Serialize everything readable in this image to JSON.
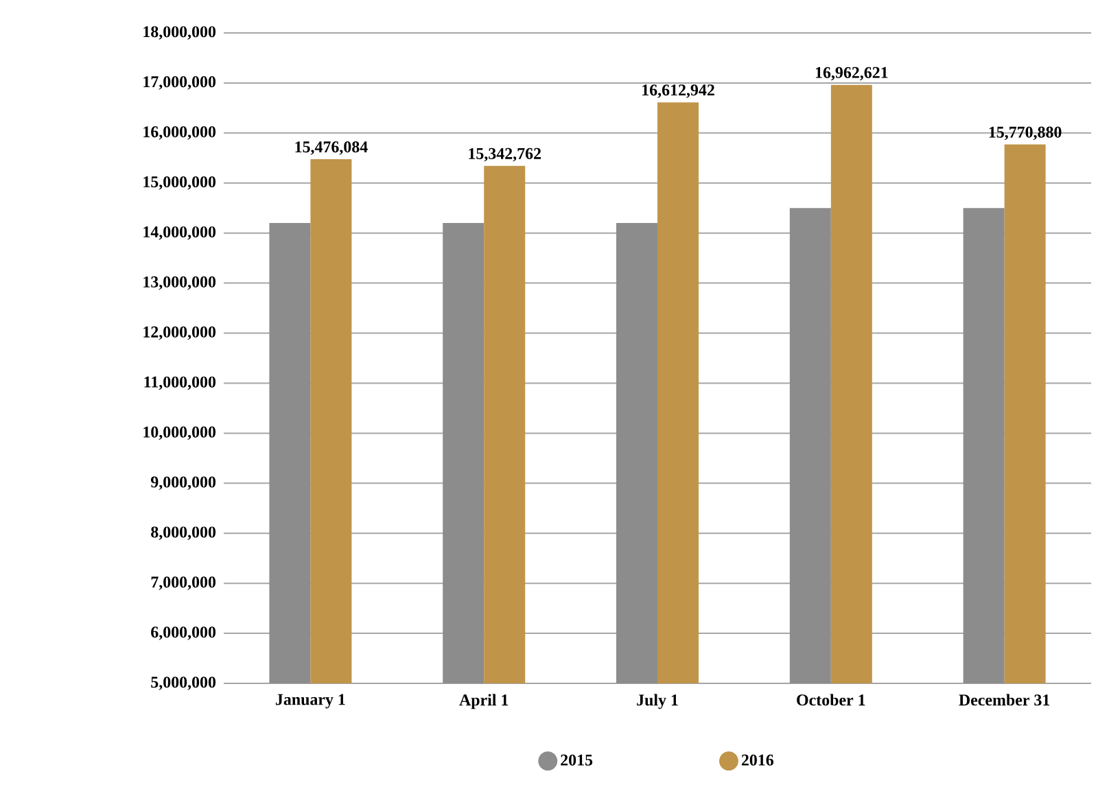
{
  "chart_data": {
    "type": "bar",
    "categories": [
      "January 1",
      "April 1",
      "July 1",
      "October 1",
      "December 31"
    ],
    "series": [
      {
        "name": "2015",
        "color": "#8c8c8c",
        "values": [
          14200000,
          14200000,
          14200000,
          14500000,
          14500000
        ]
      },
      {
        "name": "2016",
        "color": "#c0954a",
        "values": [
          15476084,
          15342762,
          16612942,
          16962621,
          15770880
        ],
        "value_labels": [
          "15,476,084",
          "15,342,762",
          "16,612,942",
          "16,962,621",
          "15,770,880"
        ]
      }
    ],
    "ylim": [
      5000000,
      18000000
    ],
    "yticks": [
      {
        "value": 5000000,
        "label": "5,000,000"
      },
      {
        "value": 6000000,
        "label": "6,000,000"
      },
      {
        "value": 7000000,
        "label": "7,000,000"
      },
      {
        "value": 8000000,
        "label": "8,000,000"
      },
      {
        "value": 9000000,
        "label": "9,000,000"
      },
      {
        "value": 10000000,
        "label": "10,000,000"
      },
      {
        "value": 11000000,
        "label": "11,000,000"
      },
      {
        "value": 12000000,
        "label": "12,000,000"
      },
      {
        "value": 13000000,
        "label": "13,000,000"
      },
      {
        "value": 14000000,
        "label": "14,000,000"
      },
      {
        "value": 15000000,
        "label": "15,000,000"
      },
      {
        "value": 16000000,
        "label": "16,000,000"
      },
      {
        "value": 17000000,
        "label": "17,000,000"
      },
      {
        "value": 18000000,
        "label": "18,000,000"
      }
    ],
    "grid": "y",
    "legend": "bottom"
  }
}
